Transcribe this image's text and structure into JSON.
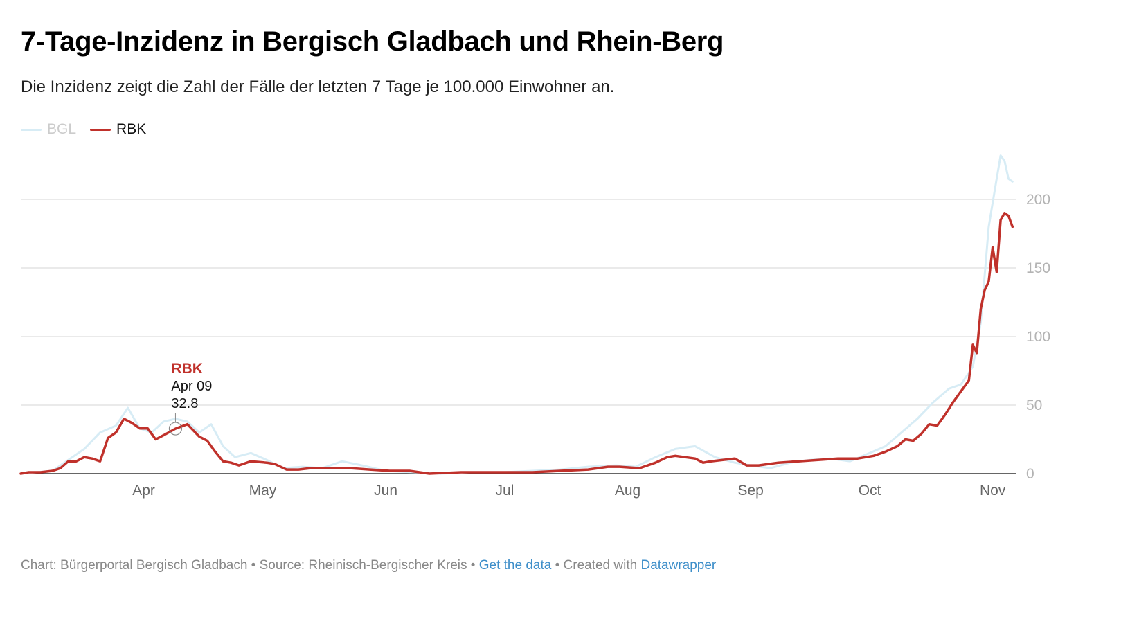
{
  "title": "7-Tage-Inzidenz in Bergisch Gladbach und Rhein-Berg",
  "subtitle": "Die Inzidenz zeigt die Zahl der Fälle der letzten 7 Tage je 100.000 Einwohner an.",
  "legend": [
    {
      "name": "BGL",
      "color": "#d7ecf5"
    },
    {
      "name": "RBK",
      "color": "#c0312b"
    }
  ],
  "tooltip": {
    "series": "RBK",
    "date": "Apr 09",
    "value": "32.8"
  },
  "footer": {
    "chart_label": "Chart: Bürgerportal Bergisch Gladbach",
    "sep1": "•",
    "source_label": "Source: Rheinisch-Bergischer Kreis",
    "sep2": "•",
    "get_data": "Get the data",
    "sep3": "•",
    "created_label": "Created with",
    "datawrapper": "Datawrapper"
  },
  "chart_data": {
    "type": "line",
    "x_ticks": [
      "Apr",
      "May",
      "Jun",
      "Jul",
      "Aug",
      "Sep",
      "Oct",
      "Nov"
    ],
    "y_ticks": [
      0,
      50,
      100,
      150,
      200
    ],
    "ylim": [
      0,
      240
    ],
    "grid": true,
    "series": [
      {
        "name": "BGL",
        "color": "#d7ecf5",
        "points": [
          [
            "2020-03-01",
            0
          ],
          [
            "2020-03-05",
            1
          ],
          [
            "2020-03-09",
            2
          ],
          [
            "2020-03-13",
            10
          ],
          [
            "2020-03-17",
            18
          ],
          [
            "2020-03-21",
            30
          ],
          [
            "2020-03-25",
            35
          ],
          [
            "2020-03-28",
            48
          ],
          [
            "2020-03-31",
            33
          ],
          [
            "2020-04-03",
            30
          ],
          [
            "2020-04-06",
            38
          ],
          [
            "2020-04-09",
            40
          ],
          [
            "2020-04-12",
            38
          ],
          [
            "2020-04-15",
            30
          ],
          [
            "2020-04-18",
            36
          ],
          [
            "2020-04-21",
            20
          ],
          [
            "2020-04-24",
            12
          ],
          [
            "2020-04-28",
            15
          ],
          [
            "2020-05-02",
            10
          ],
          [
            "2020-05-06",
            4
          ],
          [
            "2020-05-11",
            5
          ],
          [
            "2020-05-16",
            4
          ],
          [
            "2020-05-21",
            9
          ],
          [
            "2020-05-26",
            6
          ],
          [
            "2020-06-01",
            2
          ],
          [
            "2020-06-08",
            1
          ],
          [
            "2020-06-15",
            0
          ],
          [
            "2020-06-22",
            1
          ],
          [
            "2020-07-01",
            1
          ],
          [
            "2020-07-08",
            2
          ],
          [
            "2020-07-15",
            3
          ],
          [
            "2020-07-22",
            5
          ],
          [
            "2020-07-29",
            6
          ],
          [
            "2020-08-03",
            5
          ],
          [
            "2020-08-08",
            12
          ],
          [
            "2020-08-13",
            18
          ],
          [
            "2020-08-18",
            20
          ],
          [
            "2020-08-23",
            12
          ],
          [
            "2020-08-28",
            8
          ],
          [
            "2020-09-01",
            6
          ],
          [
            "2020-09-06",
            4
          ],
          [
            "2020-09-11",
            8
          ],
          [
            "2020-09-16",
            10
          ],
          [
            "2020-09-21",
            11
          ],
          [
            "2020-09-26",
            9
          ],
          [
            "2020-10-01",
            15
          ],
          [
            "2020-10-05",
            20
          ],
          [
            "2020-10-09",
            30
          ],
          [
            "2020-10-13",
            40
          ],
          [
            "2020-10-17",
            52
          ],
          [
            "2020-10-21",
            62
          ],
          [
            "2020-10-24",
            65
          ],
          [
            "2020-10-27",
            78
          ],
          [
            "2020-10-29",
            110
          ],
          [
            "2020-10-31",
            180
          ],
          [
            "2020-11-02",
            215
          ],
          [
            "2020-11-03",
            232
          ],
          [
            "2020-11-04",
            228
          ],
          [
            "2020-11-05",
            215
          ],
          [
            "2020-11-06",
            213
          ]
        ]
      },
      {
        "name": "RBK",
        "color": "#c0312b",
        "points": [
          [
            "2020-03-01",
            0
          ],
          [
            "2020-03-03",
            1
          ],
          [
            "2020-03-06",
            1
          ],
          [
            "2020-03-09",
            2
          ],
          [
            "2020-03-11",
            4
          ],
          [
            "2020-03-13",
            9
          ],
          [
            "2020-03-15",
            9
          ],
          [
            "2020-03-17",
            12
          ],
          [
            "2020-03-19",
            11
          ],
          [
            "2020-03-21",
            9
          ],
          [
            "2020-03-23",
            26
          ],
          [
            "2020-03-25",
            30
          ],
          [
            "2020-03-27",
            40
          ],
          [
            "2020-03-29",
            37
          ],
          [
            "2020-03-31",
            33
          ],
          [
            "2020-04-02",
            33
          ],
          [
            "2020-04-04",
            25
          ],
          [
            "2020-04-06",
            28
          ],
          [
            "2020-04-09",
            32.8
          ],
          [
            "2020-04-12",
            36
          ],
          [
            "2020-04-15",
            27
          ],
          [
            "2020-04-17",
            24
          ],
          [
            "2020-04-19",
            16
          ],
          [
            "2020-04-21",
            9
          ],
          [
            "2020-04-23",
            8
          ],
          [
            "2020-04-25",
            6
          ],
          [
            "2020-04-28",
            9
          ],
          [
            "2020-05-02",
            8
          ],
          [
            "2020-05-04",
            7
          ],
          [
            "2020-05-07",
            3
          ],
          [
            "2020-05-10",
            3
          ],
          [
            "2020-05-13",
            4
          ],
          [
            "2020-05-18",
            4
          ],
          [
            "2020-05-23",
            4
          ],
          [
            "2020-05-28",
            3
          ],
          [
            "2020-06-02",
            2
          ],
          [
            "2020-06-07",
            2
          ],
          [
            "2020-06-12",
            0
          ],
          [
            "2020-06-20",
            1
          ],
          [
            "2020-06-30",
            1
          ],
          [
            "2020-07-08",
            1
          ],
          [
            "2020-07-15",
            2
          ],
          [
            "2020-07-22",
            3
          ],
          [
            "2020-07-27",
            5
          ],
          [
            "2020-07-30",
            5
          ],
          [
            "2020-08-04",
            4
          ],
          [
            "2020-08-08",
            8
          ],
          [
            "2020-08-11",
            12
          ],
          [
            "2020-08-13",
            13
          ],
          [
            "2020-08-18",
            11
          ],
          [
            "2020-08-20",
            8
          ],
          [
            "2020-08-22",
            9
          ],
          [
            "2020-08-25",
            10
          ],
          [
            "2020-08-28",
            11
          ],
          [
            "2020-08-31",
            6
          ],
          [
            "2020-09-03",
            6
          ],
          [
            "2020-09-08",
            8
          ],
          [
            "2020-09-13",
            9
          ],
          [
            "2020-09-18",
            10
          ],
          [
            "2020-09-23",
            11
          ],
          [
            "2020-09-28",
            11
          ],
          [
            "2020-10-02",
            13
          ],
          [
            "2020-10-05",
            16
          ],
          [
            "2020-10-08",
            20
          ],
          [
            "2020-10-10",
            25
          ],
          [
            "2020-10-12",
            24
          ],
          [
            "2020-10-14",
            29
          ],
          [
            "2020-10-16",
            36
          ],
          [
            "2020-10-18",
            35
          ],
          [
            "2020-10-20",
            43
          ],
          [
            "2020-10-22",
            52
          ],
          [
            "2020-10-24",
            60
          ],
          [
            "2020-10-26",
            68
          ],
          [
            "2020-10-27",
            94
          ],
          [
            "2020-10-28",
            88
          ],
          [
            "2020-10-29",
            120
          ],
          [
            "2020-10-30",
            134
          ],
          [
            "2020-10-31",
            140
          ],
          [
            "2020-11-01",
            165
          ],
          [
            "2020-11-02",
            147
          ],
          [
            "2020-11-03",
            185
          ],
          [
            "2020-11-04",
            190
          ],
          [
            "2020-11-05",
            188
          ],
          [
            "2020-11-06",
            180
          ]
        ]
      }
    ]
  }
}
